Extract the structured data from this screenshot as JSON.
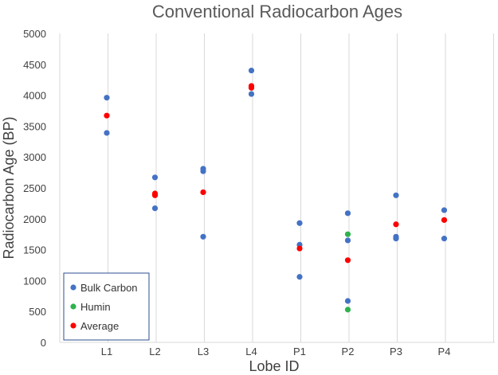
{
  "chart_data": {
    "type": "scatter",
    "title": "Conventional Radiocarbon Ages",
    "xlabel": "Lobe ID",
    "ylabel": "Radiocarbon Age (BP)",
    "categories": [
      "L1",
      "L2",
      "L3",
      "L4",
      "P1",
      "P2",
      "P3",
      "P4"
    ],
    "ylim": [
      0,
      5000
    ],
    "yticks": [
      0,
      500,
      1000,
      1500,
      2000,
      2500,
      3000,
      3500,
      4000,
      4500,
      5000
    ],
    "grid": "vertical",
    "legend_position": "bottom-left",
    "series": [
      {
        "name": "Bulk Carbon",
        "color": "#4472C4",
        "points": [
          {
            "x": "L1",
            "y": 3960
          },
          {
            "x": "L1",
            "y": 3390
          },
          {
            "x": "L2",
            "y": 2670
          },
          {
            "x": "L2",
            "y": 2170
          },
          {
            "x": "L3",
            "y": 2810
          },
          {
            "x": "L3",
            "y": 2770
          },
          {
            "x": "L3",
            "y": 1710
          },
          {
            "x": "L4",
            "y": 4400
          },
          {
            "x": "L4",
            "y": 4020
          },
          {
            "x": "P1",
            "y": 1930
          },
          {
            "x": "P1",
            "y": 1580
          },
          {
            "x": "P1",
            "y": 1060
          },
          {
            "x": "P2",
            "y": 2090
          },
          {
            "x": "P2",
            "y": 1650
          },
          {
            "x": "P2",
            "y": 670
          },
          {
            "x": "P3",
            "y": 2380
          },
          {
            "x": "P3",
            "y": 1710
          },
          {
            "x": "P3",
            "y": 1680
          },
          {
            "x": "P4",
            "y": 2140
          },
          {
            "x": "P4",
            "y": 1680
          }
        ]
      },
      {
        "name": "Humin",
        "color": "#2EB24E",
        "points": [
          {
            "x": "P2",
            "y": 1750
          },
          {
            "x": "P2",
            "y": 530
          }
        ]
      },
      {
        "name": "Average",
        "color": "#FF0000",
        "points": [
          {
            "x": "L1",
            "y": 3670
          },
          {
            "x": "L2",
            "y": 2410
          },
          {
            "x": "L2",
            "y": 2380
          },
          {
            "x": "L3",
            "y": 2430
          },
          {
            "x": "L4",
            "y": 4150
          },
          {
            "x": "L4",
            "y": 4120
          },
          {
            "x": "P1",
            "y": 1520
          },
          {
            "x": "P2",
            "y": 1330
          },
          {
            "x": "P3",
            "y": 1910
          },
          {
            "x": "P4",
            "y": 1980
          }
        ]
      }
    ]
  }
}
